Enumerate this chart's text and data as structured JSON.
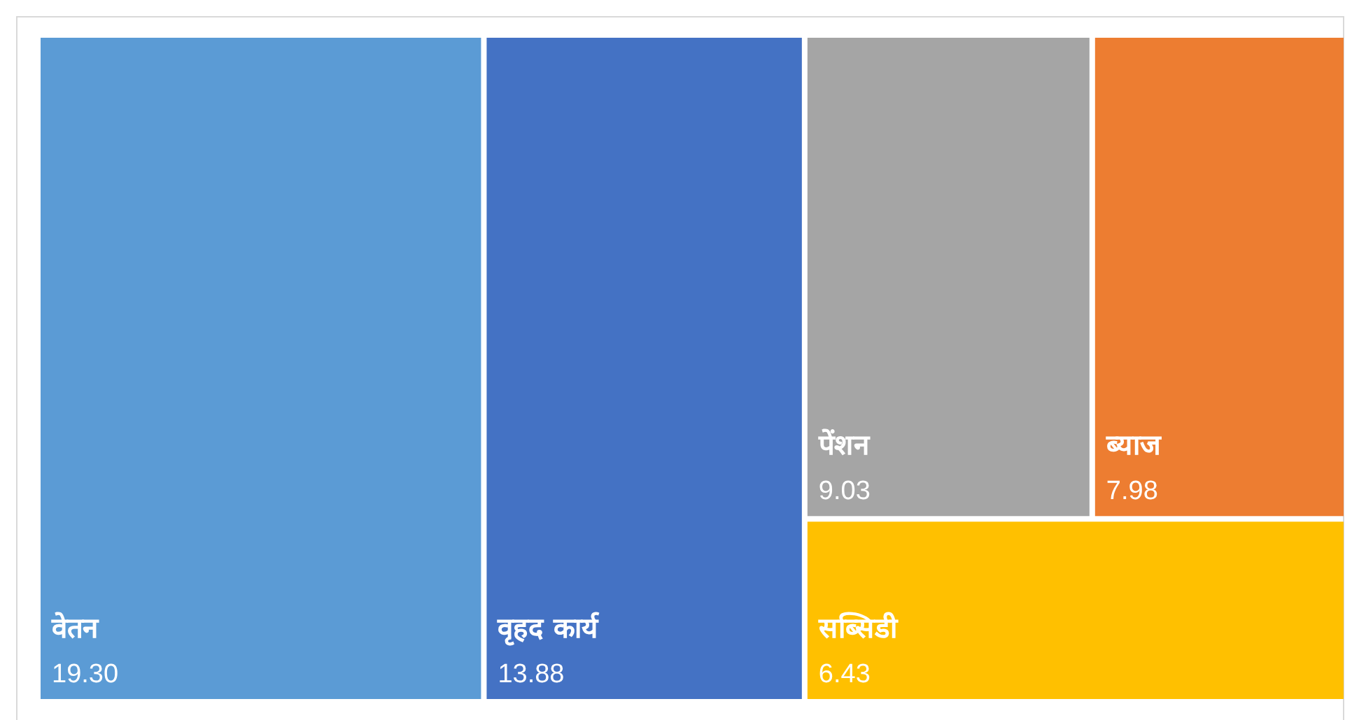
{
  "chart_data": {
    "type": "other",
    "categories": [
      "वेतन",
      "वृहद कार्य",
      "पेंशन",
      "ब्याज",
      "सब्सिडी"
    ],
    "values": [
      19.3,
      13.88,
      9.03,
      7.98,
      6.43
    ],
    "value_labels": [
      "19.30",
      "13.88",
      "9.03",
      "7.98",
      "6.43"
    ],
    "colors": [
      "#5b9bd5",
      "#4472c4",
      "#a5a5a5",
      "#ed7d31",
      "#ffc000"
    ]
  }
}
